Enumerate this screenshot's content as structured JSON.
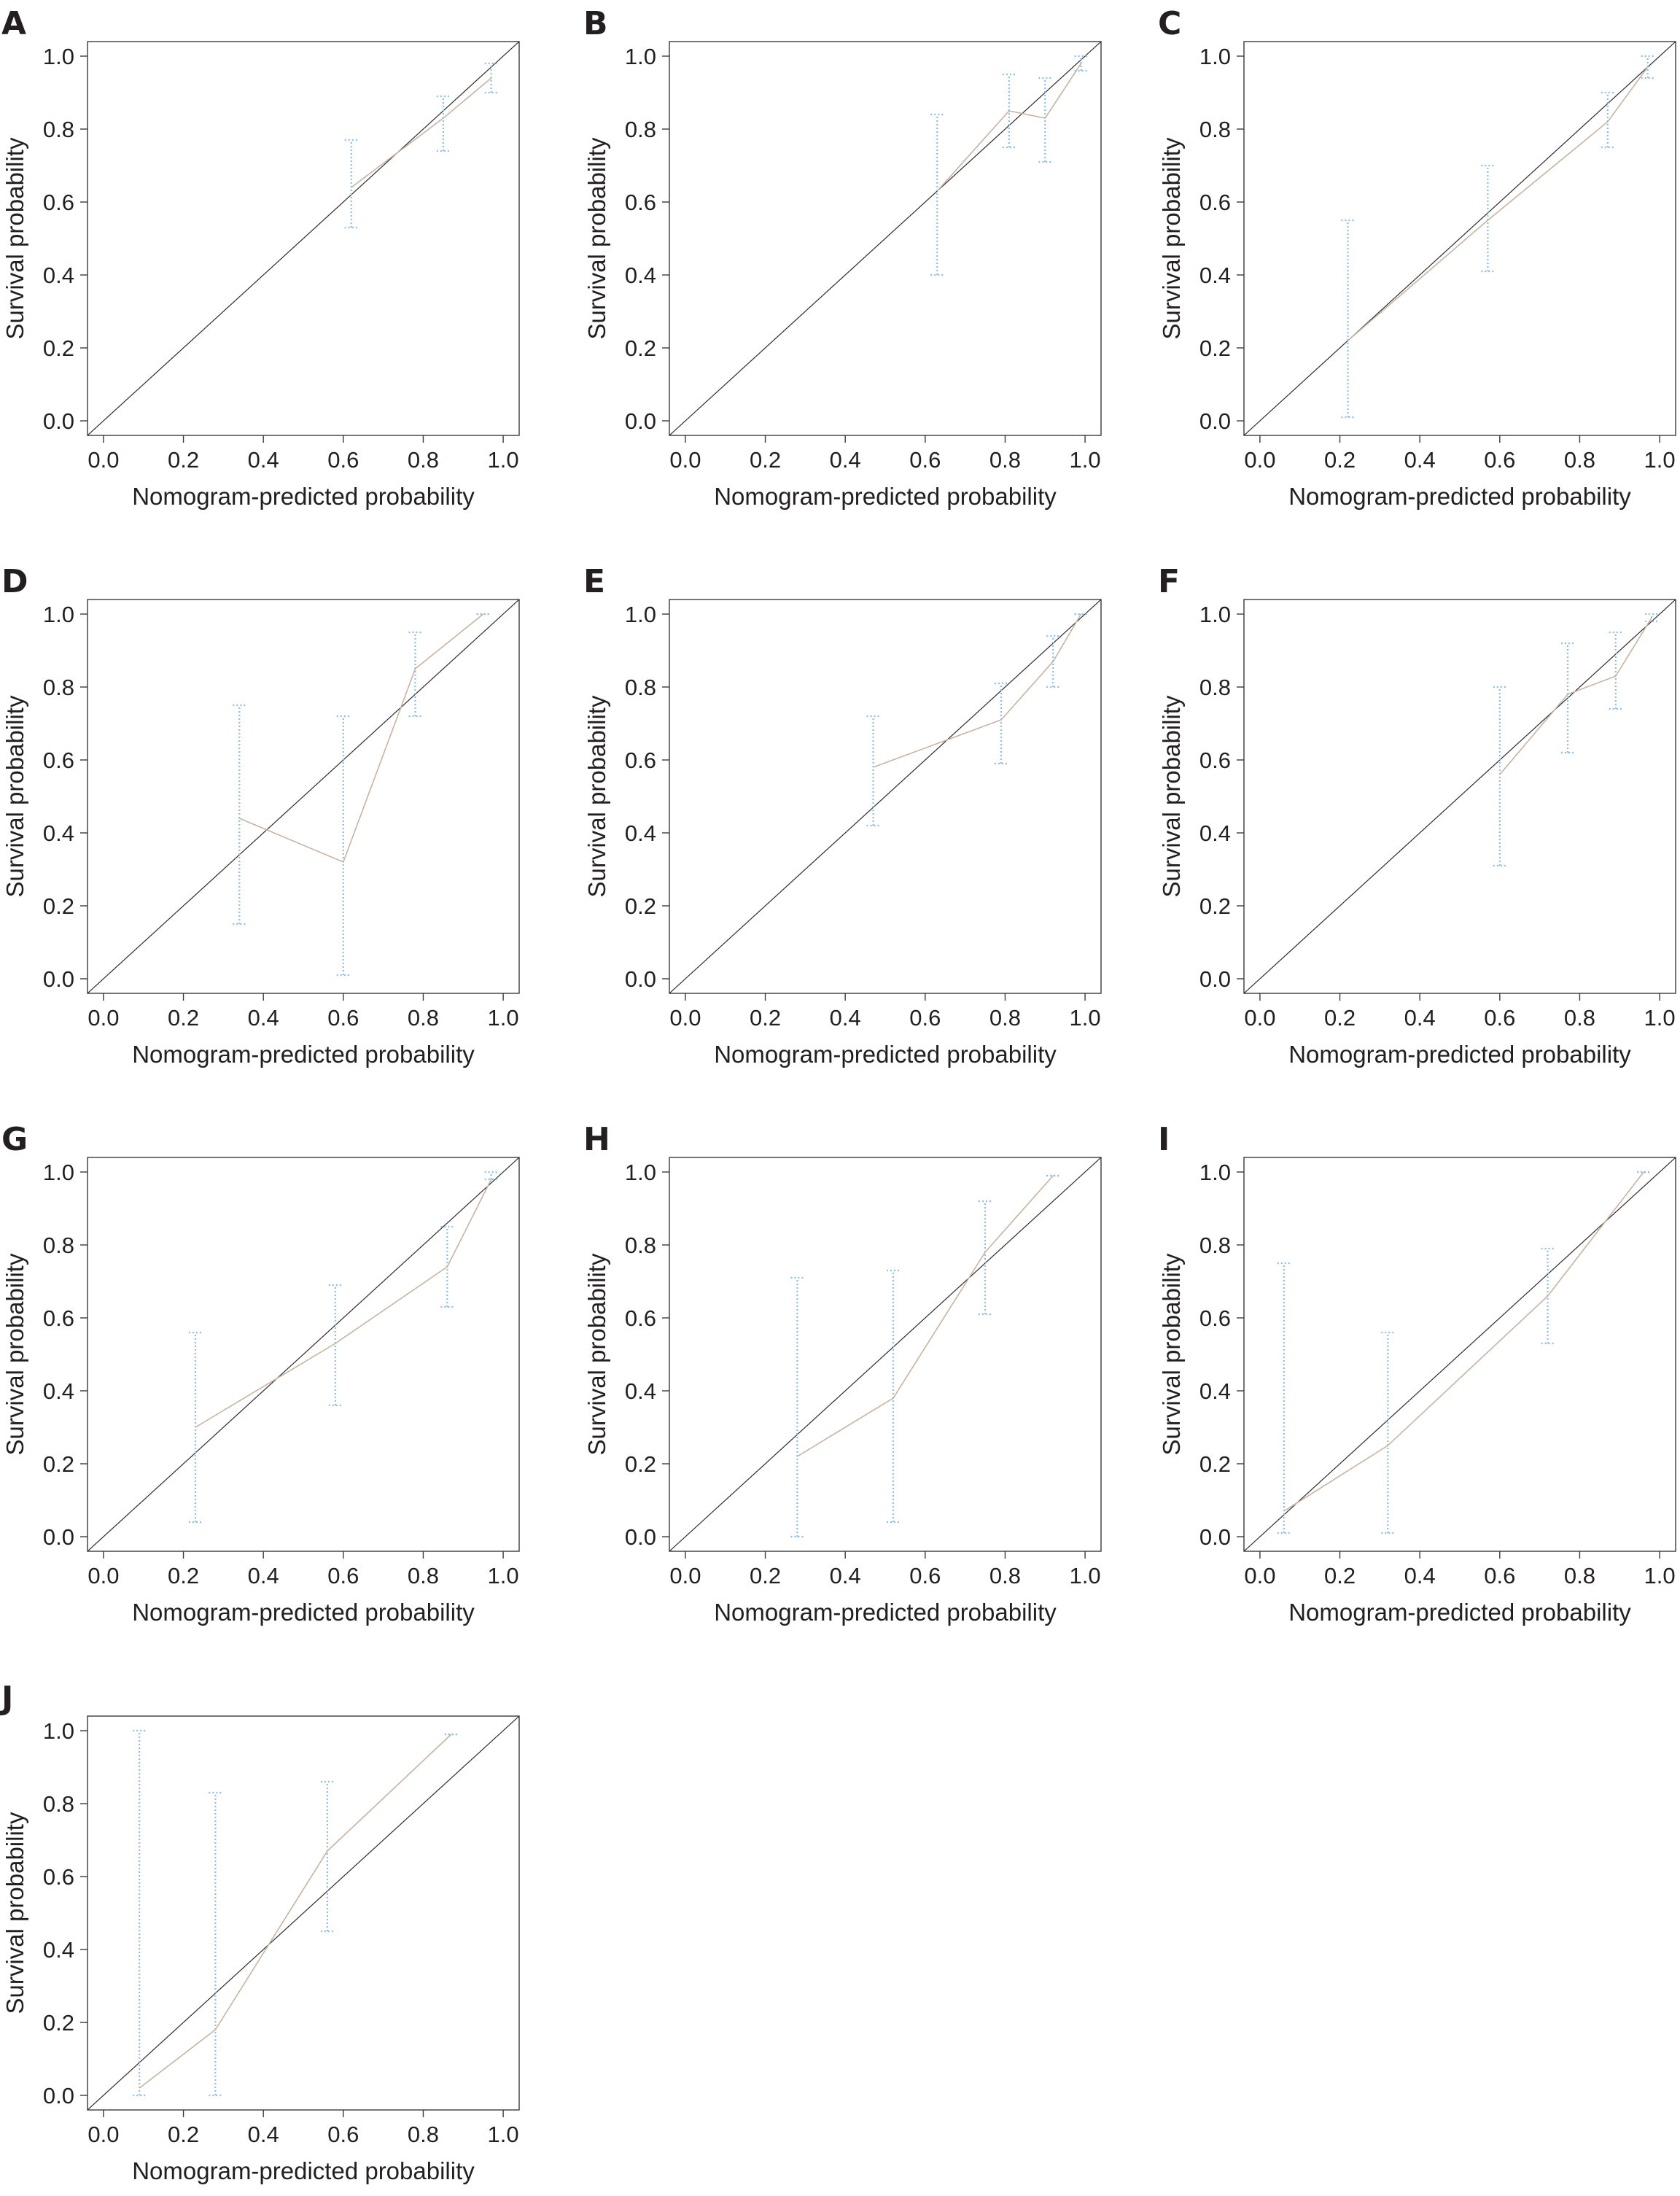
{
  "figure": {
    "colors": {
      "calibration_line": "#c7b3a1",
      "error_bar": "#8fbde6",
      "reference_line": "#2b2b2b",
      "axis": "#3a3a3a",
      "text": "#231f20"
    }
  },
  "chart_data": [
    {
      "panel": "A",
      "type": "line",
      "xlabel": "Nomogram-predicted probability",
      "ylabel": "Survival probability",
      "xlim": [
        0,
        1
      ],
      "ylim": [
        0,
        1
      ],
      "xticks": [
        "0.0",
        "0.2",
        "0.4",
        "0.6",
        "0.8",
        "1.0"
      ],
      "yticks": [
        "0.0",
        "0.2",
        "0.4",
        "0.6",
        "0.8",
        "1.0"
      ],
      "reference_line": [
        [
          0,
          0
        ],
        [
          1,
          1
        ]
      ],
      "series": [
        {
          "x": [
            0.62,
            0.85,
            0.97
          ],
          "y": [
            0.64,
            0.83,
            0.94
          ],
          "lower": [
            0.53,
            0.74,
            0.9
          ],
          "upper": [
            0.77,
            0.89,
            0.98
          ]
        }
      ]
    },
    {
      "panel": "B",
      "type": "line",
      "xlabel": "Nomogram-predicted probability",
      "ylabel": "Survival probability",
      "xlim": [
        0,
        1
      ],
      "ylim": [
        0,
        1
      ],
      "xticks": [
        "0.0",
        "0.2",
        "0.4",
        "0.6",
        "0.8",
        "1.0"
      ],
      "yticks": [
        "0.0",
        "0.2",
        "0.4",
        "0.6",
        "0.8",
        "1.0"
      ],
      "reference_line": [
        [
          0,
          0
        ],
        [
          1,
          1
        ]
      ],
      "series": [
        {
          "x": [
            0.63,
            0.81,
            0.9,
            0.99
          ],
          "y": [
            0.63,
            0.85,
            0.83,
            0.98
          ],
          "lower": [
            0.4,
            0.75,
            0.71,
            0.96
          ],
          "upper": [
            0.84,
            0.95,
            0.94,
            1.0
          ]
        }
      ]
    },
    {
      "panel": "C",
      "type": "line",
      "xlabel": "Nomogram-predicted probability",
      "ylabel": "Survival probability",
      "xlim": [
        0,
        1
      ],
      "ylim": [
        0,
        1
      ],
      "xticks": [
        "0.0",
        "0.2",
        "0.4",
        "0.6",
        "0.8",
        "1.0"
      ],
      "yticks": [
        "0.0",
        "0.2",
        "0.4",
        "0.6",
        "0.8",
        "1.0"
      ],
      "reference_line": [
        [
          0,
          0
        ],
        [
          1,
          1
        ]
      ],
      "series": [
        {
          "x": [
            0.22,
            0.57,
            0.87,
            0.97
          ],
          "y": [
            0.22,
            0.55,
            0.82,
            0.97
          ],
          "lower": [
            0.01,
            0.41,
            0.75,
            0.94
          ],
          "upper": [
            0.55,
            0.7,
            0.9,
            1.0
          ]
        }
      ]
    },
    {
      "panel": "D",
      "type": "line",
      "xlabel": "Nomogram-predicted probability",
      "ylabel": "Survival probability",
      "xlim": [
        0,
        1
      ],
      "ylim": [
        0,
        1
      ],
      "xticks": [
        "0.0",
        "0.2",
        "0.4",
        "0.6",
        "0.8",
        "1.0"
      ],
      "yticks": [
        "0.0",
        "0.2",
        "0.4",
        "0.6",
        "0.8",
        "1.0"
      ],
      "reference_line": [
        [
          0,
          0
        ],
        [
          1,
          1
        ]
      ],
      "series": [
        {
          "x": [
            0.34,
            0.6,
            0.78,
            0.95
          ],
          "y": [
            0.44,
            0.32,
            0.85,
            1.0
          ],
          "lower": [
            0.15,
            0.01,
            0.72,
            1.0
          ],
          "upper": [
            0.75,
            0.72,
            0.95,
            1.0
          ]
        }
      ]
    },
    {
      "panel": "E",
      "type": "line",
      "xlabel": "Nomogram-predicted probability",
      "ylabel": "Survival probability",
      "xlim": [
        0,
        1
      ],
      "ylim": [
        0,
        1
      ],
      "xticks": [
        "0.0",
        "0.2",
        "0.4",
        "0.6",
        "0.8",
        "1.0"
      ],
      "yticks": [
        "0.0",
        "0.2",
        "0.4",
        "0.6",
        "0.8",
        "1.0"
      ],
      "reference_line": [
        [
          0,
          0
        ],
        [
          1,
          1
        ]
      ],
      "series": [
        {
          "x": [
            0.47,
            0.79,
            0.92,
            0.99
          ],
          "y": [
            0.58,
            0.71,
            0.87,
            1.0
          ],
          "lower": [
            0.42,
            0.59,
            0.8,
            1.0
          ],
          "upper": [
            0.72,
            0.81,
            0.94,
            1.0
          ]
        }
      ]
    },
    {
      "panel": "F",
      "type": "line",
      "xlabel": "Nomogram-predicted probability",
      "ylabel": "Survival probability",
      "xlim": [
        0,
        1
      ],
      "ylim": [
        0,
        1
      ],
      "xticks": [
        "0.0",
        "0.2",
        "0.4",
        "0.6",
        "0.8",
        "1.0"
      ],
      "yticks": [
        "0.0",
        "0.2",
        "0.4",
        "0.6",
        "0.8",
        "1.0"
      ],
      "reference_line": [
        [
          0,
          0
        ],
        [
          1,
          1
        ]
      ],
      "series": [
        {
          "x": [
            0.6,
            0.77,
            0.89,
            0.98
          ],
          "y": [
            0.56,
            0.78,
            0.83,
            0.99
          ],
          "lower": [
            0.31,
            0.62,
            0.74,
            0.98
          ],
          "upper": [
            0.8,
            0.92,
            0.95,
            1.0
          ]
        }
      ]
    },
    {
      "panel": "G",
      "type": "line",
      "xlabel": "Nomogram-predicted probability",
      "ylabel": "Survival probability",
      "xlim": [
        0,
        1
      ],
      "ylim": [
        0,
        1
      ],
      "xticks": [
        "0.0",
        "0.2",
        "0.4",
        "0.6",
        "0.8",
        "1.0"
      ],
      "yticks": [
        "0.0",
        "0.2",
        "0.4",
        "0.6",
        "0.8",
        "1.0"
      ],
      "reference_line": [
        [
          0,
          0
        ],
        [
          1,
          1
        ]
      ],
      "series": [
        {
          "x": [
            0.23,
            0.58,
            0.86,
            0.97
          ],
          "y": [
            0.3,
            0.53,
            0.74,
            0.98
          ],
          "lower": [
            0.04,
            0.36,
            0.63,
            0.98
          ],
          "upper": [
            0.56,
            0.69,
            0.85,
            1.0
          ]
        }
      ]
    },
    {
      "panel": "H",
      "type": "line",
      "xlabel": "Nomogram-predicted probability",
      "ylabel": "Survival probability",
      "xlim": [
        0,
        1
      ],
      "ylim": [
        0,
        1
      ],
      "xticks": [
        "0.0",
        "0.2",
        "0.4",
        "0.6",
        "0.8",
        "1.0"
      ],
      "yticks": [
        "0.0",
        "0.2",
        "0.4",
        "0.6",
        "0.8",
        "1.0"
      ],
      "reference_line": [
        [
          0,
          0
        ],
        [
          1,
          1
        ]
      ],
      "series": [
        {
          "x": [
            0.28,
            0.52,
            0.75,
            0.92
          ],
          "y": [
            0.22,
            0.38,
            0.78,
            0.99
          ],
          "lower": [
            0.0,
            0.04,
            0.61,
            0.99
          ],
          "upper": [
            0.71,
            0.73,
            0.92,
            0.99
          ]
        }
      ]
    },
    {
      "panel": "I",
      "type": "line",
      "xlabel": "Nomogram-predicted probability",
      "ylabel": "Survival probability",
      "xlim": [
        0,
        1
      ],
      "ylim": [
        0,
        1
      ],
      "xticks": [
        "0.0",
        "0.2",
        "0.4",
        "0.6",
        "0.8",
        "1.0"
      ],
      "yticks": [
        "0.0",
        "0.2",
        "0.4",
        "0.6",
        "0.8",
        "1.0"
      ],
      "reference_line": [
        [
          0,
          0
        ],
        [
          1,
          1
        ]
      ],
      "series": [
        {
          "x": [
            0.06,
            0.32,
            0.72,
            0.96
          ],
          "y": [
            0.07,
            0.25,
            0.66,
            1.0
          ],
          "lower": [
            0.01,
            0.01,
            0.53,
            1.0
          ],
          "upper": [
            0.75,
            0.56,
            0.79,
            1.0
          ]
        }
      ]
    },
    {
      "panel": "J",
      "type": "line",
      "xlabel": "Nomogram-predicted probability",
      "ylabel": "Survival probability",
      "xlim": [
        0,
        1
      ],
      "ylim": [
        0,
        1
      ],
      "xticks": [
        "0.0",
        "0.2",
        "0.4",
        "0.6",
        "0.8",
        "1.0"
      ],
      "yticks": [
        "0.0",
        "0.2",
        "0.4",
        "0.6",
        "0.8",
        "1.0"
      ],
      "reference_line": [
        [
          0,
          0
        ],
        [
          1,
          1
        ]
      ],
      "series": [
        {
          "x": [
            0.09,
            0.28,
            0.56,
            0.87
          ],
          "y": [
            0.02,
            0.18,
            0.67,
            0.99
          ],
          "lower": [
            0.0,
            0.0,
            0.45,
            0.99
          ],
          "upper": [
            1.0,
            0.83,
            0.86,
            0.99
          ]
        }
      ]
    }
  ]
}
